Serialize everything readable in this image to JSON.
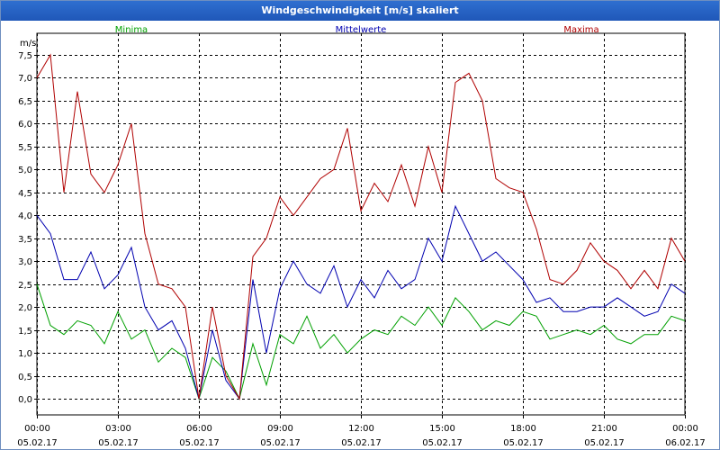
{
  "window": {
    "title": "Windgeschwindigkeit [m/s] skaliert"
  },
  "chart_data": {
    "type": "line",
    "title": "Windgeschwindigkeit [m/s] skaliert",
    "ylabel": "m/s",
    "xlabel": "",
    "ylim": [
      0,
      7.5
    ],
    "xlim": [
      0,
      24
    ],
    "grid": true,
    "yticks": [
      0,
      0.5,
      1,
      1.5,
      2,
      2.5,
      3,
      3.5,
      4,
      4.5,
      5,
      5.5,
      6,
      6.5,
      7,
      7.5
    ],
    "ytick_labels": [
      "0,0",
      "0,5",
      "1,0",
      "1,5",
      "2,0",
      "2,5",
      "3,0",
      "3,5",
      "4,0",
      "4,5",
      "5,0",
      "5,5",
      "6,0",
      "6,5",
      "7,0",
      "7,5"
    ],
    "xticks": [
      {
        "time": "00:00",
        "date": "05.02.17"
      },
      {
        "time": "03:00",
        "date": "05.02.17"
      },
      {
        "time": "06:00",
        "date": "05.02.17"
      },
      {
        "time": "09:00",
        "date": "05.02.17"
      },
      {
        "time": "12:00",
        "date": "05.02.17"
      },
      {
        "time": "15:00",
        "date": "05.02.17"
      },
      {
        "time": "18:00",
        "date": "05.02.17"
      },
      {
        "time": "21:00",
        "date": "05.02.17"
      },
      {
        "time": "00:00",
        "date": "06.02.17"
      }
    ],
    "series": [
      {
        "name": "Minima",
        "color": "#00a000",
        "x": [
          0,
          0.5,
          1,
          1.5,
          2,
          2.5,
          3,
          3.5,
          4,
          4.5,
          5,
          5.5,
          6,
          6.5,
          7,
          7.5,
          8,
          8.5,
          9,
          9.5,
          10,
          10.5,
          11,
          11.5,
          12,
          12.5,
          13,
          13.5,
          14,
          14.5,
          15,
          15.5,
          16,
          16.5,
          17,
          17.5,
          18,
          18.5,
          19,
          19.5,
          20,
          20.5,
          21,
          21.5,
          22,
          22.5,
          23,
          23.5,
          24
        ],
        "values": [
          2.5,
          1.6,
          1.4,
          1.7,
          1.6,
          1.2,
          1.9,
          1.3,
          1.5,
          0.8,
          1.1,
          0.9,
          0.0,
          0.9,
          0.6,
          0.0,
          1.2,
          0.3,
          1.4,
          1.2,
          1.8,
          1.1,
          1.4,
          1.0,
          1.3,
          1.5,
          1.4,
          1.8,
          1.6,
          2.0,
          1.6,
          2.2,
          1.9,
          1.5,
          1.7,
          1.6,
          1.9,
          1.8,
          1.3,
          1.4,
          1.5,
          1.4,
          1.6,
          1.3,
          1.2,
          1.4,
          1.4,
          1.8,
          1.7
        ]
      },
      {
        "name": "Mittelwerte",
        "color": "#0000b0",
        "x": [
          0,
          0.5,
          1,
          1.5,
          2,
          2.5,
          3,
          3.5,
          4,
          4.5,
          5,
          5.5,
          6,
          6.5,
          7,
          7.5,
          8,
          8.5,
          9,
          9.5,
          10,
          10.5,
          11,
          11.5,
          12,
          12.5,
          13,
          13.5,
          14,
          14.5,
          15,
          15.5,
          16,
          16.5,
          17,
          17.5,
          18,
          18.5,
          19,
          19.5,
          20,
          20.5,
          21,
          21.5,
          22,
          22.5,
          23,
          23.5,
          24
        ],
        "values": [
          4.0,
          3.6,
          2.6,
          2.6,
          3.2,
          2.4,
          2.7,
          3.3,
          2.0,
          1.5,
          1.7,
          1.1,
          0.0,
          1.5,
          0.4,
          0.0,
          2.6,
          1.0,
          2.4,
          3.0,
          2.5,
          2.3,
          2.9,
          2.0,
          2.6,
          2.2,
          2.8,
          2.4,
          2.6,
          3.5,
          3.0,
          4.2,
          3.6,
          3.0,
          3.2,
          2.9,
          2.6,
          2.1,
          2.2,
          1.9,
          1.9,
          2.0,
          2.0,
          2.2,
          2.0,
          1.8,
          1.9,
          2.5,
          2.3
        ]
      },
      {
        "name": "Maxima",
        "color": "#b00000",
        "x": [
          0,
          0.5,
          1,
          1.5,
          2,
          2.5,
          3,
          3.5,
          4,
          4.5,
          5,
          5.5,
          6,
          6.5,
          7,
          7.5,
          8,
          8.5,
          9,
          9.5,
          10,
          10.5,
          11,
          11.5,
          12,
          12.5,
          13,
          13.5,
          14,
          14.5,
          15,
          15.5,
          16,
          16.5,
          17,
          17.5,
          18,
          18.5,
          19,
          19.5,
          20,
          20.5,
          21,
          21.5,
          22,
          22.5,
          23,
          23.5,
          24
        ],
        "values": [
          7.0,
          7.5,
          4.5,
          6.7,
          4.9,
          4.5,
          5.1,
          6.0,
          3.6,
          2.5,
          2.4,
          2.0,
          0.0,
          2.0,
          0.5,
          0.0,
          3.1,
          3.5,
          4.4,
          4.0,
          4.4,
          4.8,
          5.0,
          5.9,
          4.1,
          4.7,
          4.3,
          5.1,
          4.2,
          5.5,
          4.5,
          6.9,
          7.1,
          6.5,
          4.8,
          4.6,
          4.5,
          3.7,
          2.6,
          2.5,
          2.8,
          3.4,
          3.0,
          2.8,
          2.4,
          2.8,
          2.4,
          3.5,
          3.0
        ]
      }
    ]
  }
}
